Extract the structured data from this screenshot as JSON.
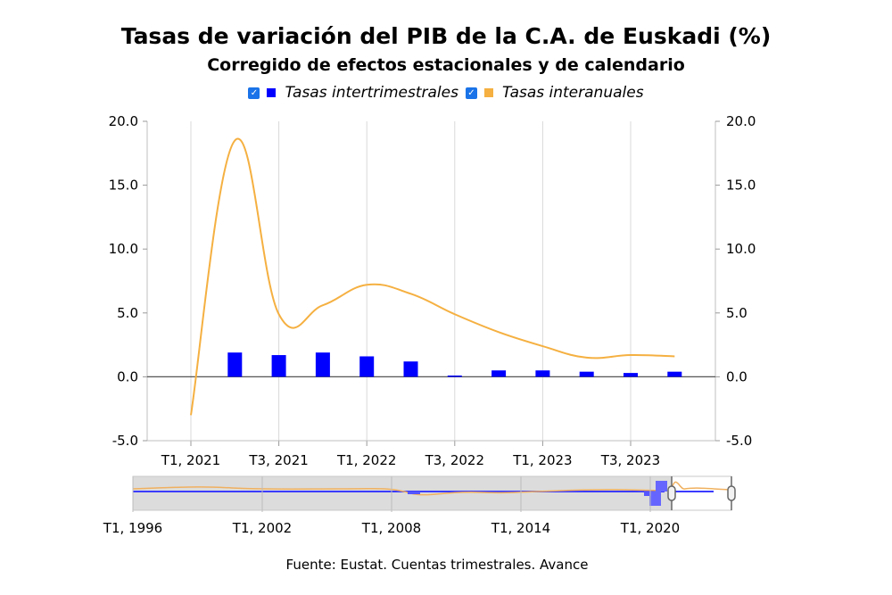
{
  "chart_data": {
    "type": "bar+line",
    "title": "Tasas de variación del PIB de la C.A. de Euskadi (%)",
    "subtitle": "Corregido de efectos estacionales y de calendario",
    "x_tick_labels": [
      "T1, 2021",
      "T3, 2021",
      "T1, 2022",
      "T3, 2022",
      "T1, 2023",
      "T3, 2023"
    ],
    "categories": [
      "T1 2021",
      "T2 2021",
      "T3 2021",
      "T4 2021",
      "T1 2022",
      "T2 2022",
      "T3 2022",
      "T4 2022",
      "T1 2023",
      "T2 2023",
      "T3 2023",
      "T4 2023"
    ],
    "ylim": [
      -5,
      20
    ],
    "y_ticks": [
      "20.0",
      "15.0",
      "10.0",
      "5.0",
      "0.0",
      "-5.0"
    ],
    "series": [
      {
        "name": "Tasas intertrimestrales",
        "type": "bar",
        "color": "#0000ff",
        "values": [
          null,
          1.9,
          1.7,
          1.9,
          1.6,
          1.2,
          0.1,
          0.5,
          0.5,
          0.4,
          0.3,
          0.4
        ]
      },
      {
        "name": "Tasas interanuales",
        "type": "line",
        "color": "#f5b041",
        "values": [
          -3.0,
          18.5,
          4.9,
          5.6,
          7.2,
          6.5,
          4.9,
          3.5,
          2.4,
          1.5,
          1.7,
          1.6
        ]
      }
    ],
    "navigator": {
      "x_tick_labels": [
        "T1, 1996",
        "T1, 2002",
        "T1, 2008",
        "T1, 2014",
        "T1, 2020"
      ]
    }
  },
  "legend": {
    "items": [
      {
        "label": "Tasas intertrimestrales",
        "color": "#0000ff"
      },
      {
        "label": "Tasas interanuales",
        "color": "#f5b041"
      }
    ]
  },
  "source": "Fuente: Eustat. Cuentas trimestrales. Avance"
}
